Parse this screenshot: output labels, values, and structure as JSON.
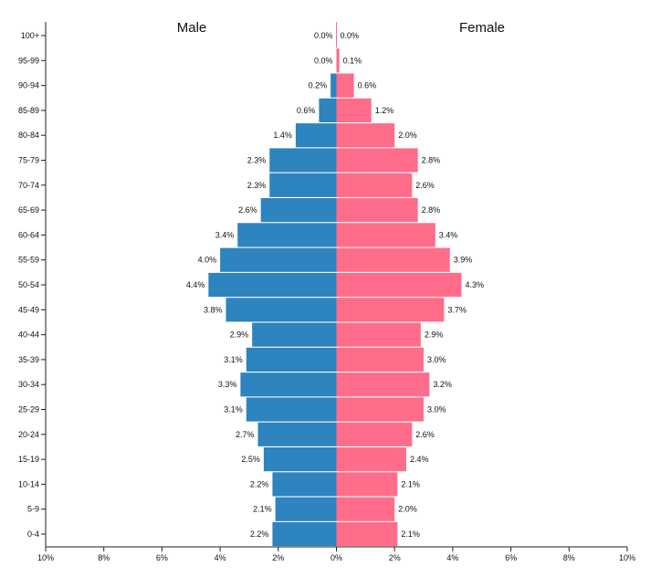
{
  "chart_data": {
    "type": "bar",
    "orientation": "horizontal-pyramid",
    "categories": [
      "0-4",
      "5-9",
      "10-14",
      "15-19",
      "20-24",
      "25-29",
      "30-34",
      "35-39",
      "40-44",
      "45-49",
      "50-54",
      "55-59",
      "60-64",
      "65-69",
      "70-74",
      "75-79",
      "80-84",
      "85-89",
      "90-94",
      "95-99",
      "100+"
    ],
    "series": [
      {
        "name": "Male",
        "color": "#2d84bf",
        "values": [
          2.2,
          2.1,
          2.2,
          2.5,
          2.7,
          3.1,
          3.3,
          3.1,
          2.9,
          3.8,
          4.4,
          4.0,
          3.4,
          2.6,
          2.3,
          2.3,
          1.4,
          0.6,
          0.2,
          0.0,
          0.0
        ],
        "labels": [
          "2.2%",
          "2.1%",
          "2.2%",
          "2.5%",
          "2.7%",
          "3.1%",
          "3.3%",
          "3.1%",
          "2.9%",
          "3.8%",
          "4.4%",
          "4.0%",
          "3.4%",
          "2.6%",
          "2.3%",
          "2.3%",
          "1.4%",
          "0.6%",
          "0.2%",
          "0.0%",
          "0.0%"
        ]
      },
      {
        "name": "Female",
        "color": "#ff6d8a",
        "values": [
          2.1,
          2.0,
          2.1,
          2.4,
          2.6,
          3.0,
          3.2,
          3.0,
          2.9,
          3.7,
          4.3,
          3.9,
          3.4,
          2.8,
          2.6,
          2.8,
          2.0,
          1.2,
          0.6,
          0.1,
          0.0
        ],
        "labels": [
          "2.1%",
          "2.0%",
          "2.1%",
          "2.4%",
          "2.6%",
          "3.0%",
          "3.2%",
          "3.0%",
          "2.9%",
          "3.7%",
          "4.3%",
          "3.9%",
          "3.4%",
          "2.8%",
          "2.6%",
          "2.8%",
          "2.0%",
          "1.2%",
          "0.6%",
          "0.1%",
          "0.0%"
        ]
      }
    ],
    "xlim": [
      -10,
      10
    ],
    "xticks": [
      {
        "value": -10,
        "label": "10%"
      },
      {
        "value": -8,
        "label": "8%"
      },
      {
        "value": -6,
        "label": "6%"
      },
      {
        "value": -4,
        "label": "4%"
      },
      {
        "value": -2,
        "label": "2%"
      },
      {
        "value": 0,
        "label": "0%"
      },
      {
        "value": 2,
        "label": "2%"
      },
      {
        "value": 4,
        "label": "4%"
      },
      {
        "value": 6,
        "label": "6%"
      },
      {
        "value": 8,
        "label": "8%"
      },
      {
        "value": 10,
        "label": "10%"
      }
    ],
    "grid": false,
    "legend": "none"
  }
}
